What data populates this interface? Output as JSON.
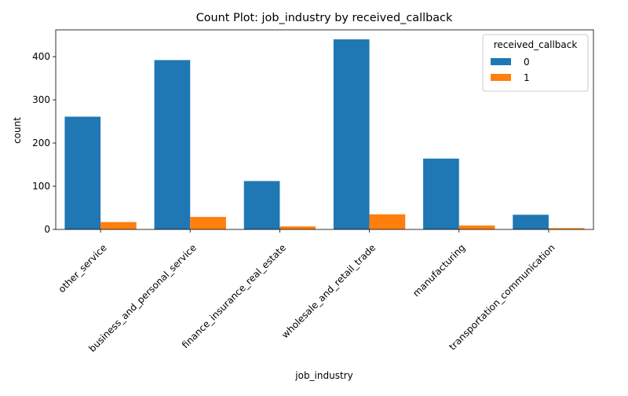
{
  "chart_data": {
    "type": "bar",
    "title": "Count Plot: job_industry by received_callback",
    "xlabel": "job_industry",
    "ylabel": "count",
    "categories": [
      "other_service",
      "business_and_personal_service",
      "finance_insurance_real_estate",
      "wholesale_and_retail_trade",
      "manufacturing",
      "transportation_communication"
    ],
    "series": [
      {
        "name": "0",
        "color": "#1f77b4",
        "values": [
          261,
          392,
          112,
          440,
          164,
          34
        ]
      },
      {
        "name": "1",
        "color": "#ff7f0e",
        "values": [
          17,
          29,
          7,
          35,
          9,
          3
        ]
      }
    ],
    "ylim": [
      0,
      462
    ],
    "yticks": [
      0,
      100,
      200,
      300,
      400
    ],
    "legend": {
      "title": "received_callback",
      "placement": "top-right"
    },
    "grid": false,
    "x_tick_rotation": 45
  }
}
